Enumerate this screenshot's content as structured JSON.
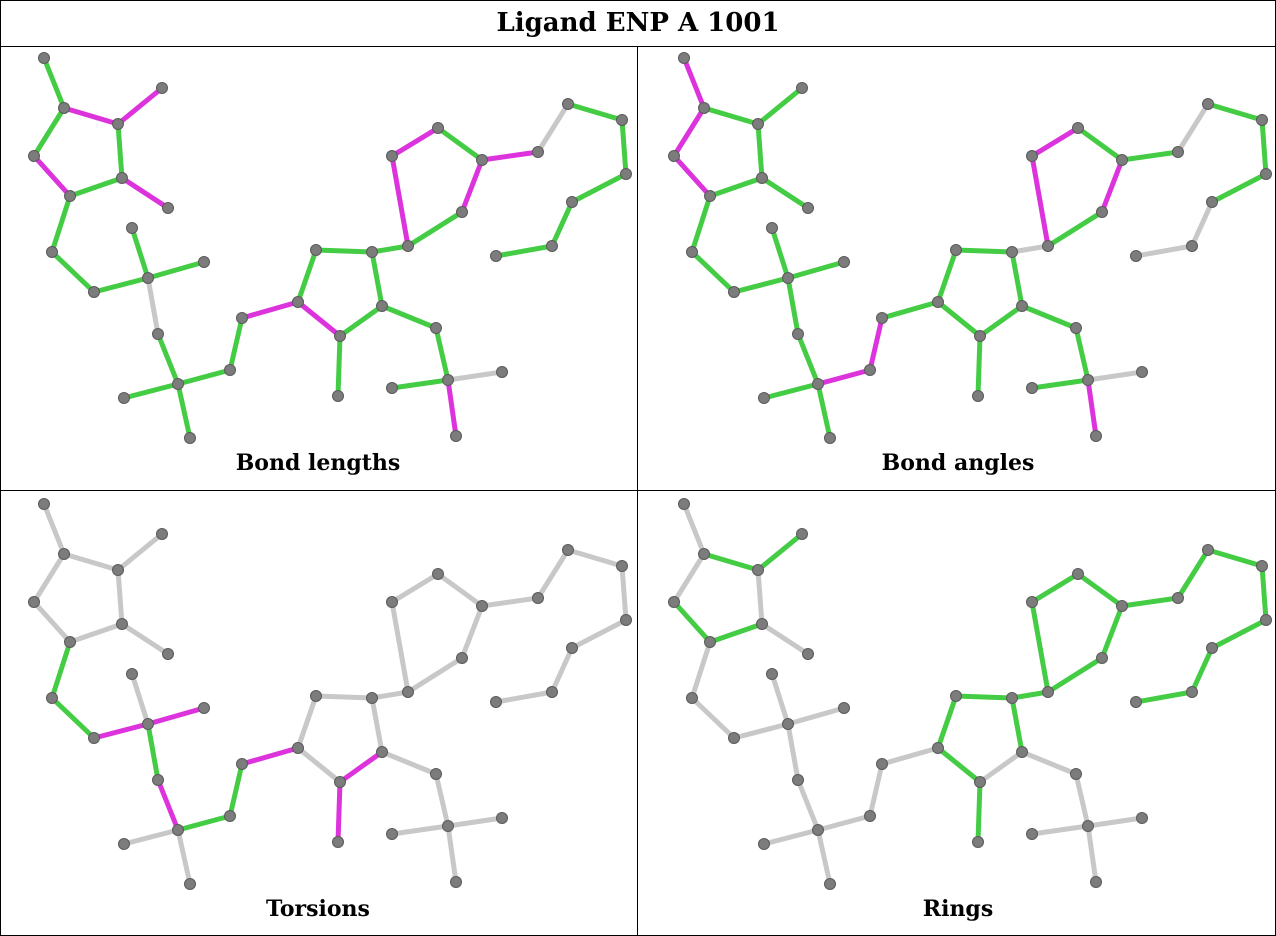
{
  "title": "Ligand ENP A 1001",
  "colors": {
    "ok": "#44cc44",
    "outlier": "#dd33dd",
    "neutral": "#c8c8c8",
    "atom": "#7c7c7c"
  },
  "panels": [
    {
      "caption": "Bond lengths",
      "bonds": [
        "g",
        "m",
        "m",
        "g",
        "m",
        "g",
        "g",
        "m",
        "g",
        "g",
        "g",
        "g",
        "g",
        "n",
        "g",
        "g",
        "g",
        "g",
        "g",
        "m",
        "g",
        "g",
        "g",
        "m",
        "g",
        "g",
        "g",
        "g",
        "g",
        "n",
        "m",
        "g",
        "g",
        "m",
        "m",
        "g",
        "m",
        "m",
        "n",
        "g",
        "g",
        "g",
        "g",
        "g"
      ]
    },
    {
      "caption": "Bond angles",
      "bonds": [
        "m",
        "g",
        "g",
        "m",
        "m",
        "g",
        "g",
        "g",
        "g",
        "g",
        "g",
        "g",
        "g",
        "g",
        "g",
        "g",
        "g",
        "m",
        "m",
        "g",
        "g",
        "g",
        "g",
        "g",
        "g",
        "g",
        "g",
        "g",
        "g",
        "n",
        "m",
        "n",
        "g",
        "m",
        "m",
        "g",
        "m",
        "g",
        "n",
        "g",
        "g",
        "g",
        "n",
        "n"
      ]
    },
    {
      "caption": "Torsions",
      "bonds": [
        "n",
        "n",
        "n",
        "n",
        "n",
        "n",
        "n",
        "n",
        "g",
        "g",
        "m",
        "m",
        "n",
        "g",
        "m",
        "n",
        "n",
        "g",
        "g",
        "m",
        "n",
        "n",
        "n",
        "n",
        "m",
        "m",
        "n",
        "n",
        "n",
        "n",
        "n",
        "n",
        "n",
        "n",
        "n",
        "n",
        "n",
        "n",
        "n",
        "n",
        "n",
        "n",
        "n",
        "n"
      ]
    },
    {
      "caption": "Rings",
      "bonds": [
        "n",
        "g",
        "g",
        "n",
        "g",
        "g",
        "n",
        "n",
        "n",
        "n",
        "n",
        "n",
        "n",
        "n",
        "n",
        "n",
        "n",
        "n",
        "n",
        "n",
        "g",
        "g",
        "g",
        "g",
        "g",
        "n",
        "n",
        "n",
        "n",
        "n",
        "n",
        "g",
        "g",
        "g",
        "g",
        "g",
        "g",
        "g",
        "g",
        "g",
        "g",
        "g",
        "g",
        "g"
      ]
    }
  ]
}
